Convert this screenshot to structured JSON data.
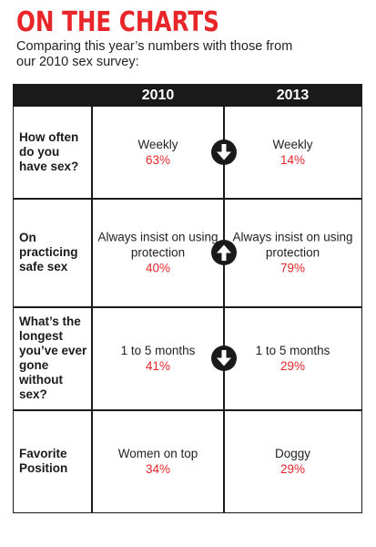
{
  "header": {
    "title": "ON THE CHARTS",
    "subtitle": "Comparing this year’s numbers with those from our 2010 sex survey:"
  },
  "colors": {
    "accent": "#e8262a",
    "ink": "#1a1a1a"
  },
  "chart_data": {
    "type": "table",
    "columns": [
      "2010",
      "2013"
    ],
    "rows": [
      {
        "question": "How often do you have sex?",
        "answer_2010": "Weekly",
        "pct_2010": "63%",
        "answer_2013": "Weekly",
        "pct_2013": "14%",
        "trend": "down",
        "trend_icon": "arrow-down-icon"
      },
      {
        "question": "On practicing safe sex",
        "answer_2010": "Always insist on using protection",
        "pct_2010": "40%",
        "answer_2013": "Always insist on using protection",
        "pct_2013": "79%",
        "trend": "up",
        "trend_icon": "arrow-up-icon"
      },
      {
        "question": "What’s the longest you’ve ever gone without sex?",
        "answer_2010": "1 to 5 months",
        "pct_2010": "41%",
        "answer_2013": "1 to 5 months",
        "pct_2013": "29%",
        "trend": "down",
        "trend_icon": "arrow-down-icon"
      },
      {
        "question": "Favorite Position",
        "answer_2010": "Women on top",
        "pct_2010": "34%",
        "answer_2013": "Doggy",
        "pct_2013": "29%",
        "trend": "none",
        "trend_icon": ""
      }
    ]
  }
}
